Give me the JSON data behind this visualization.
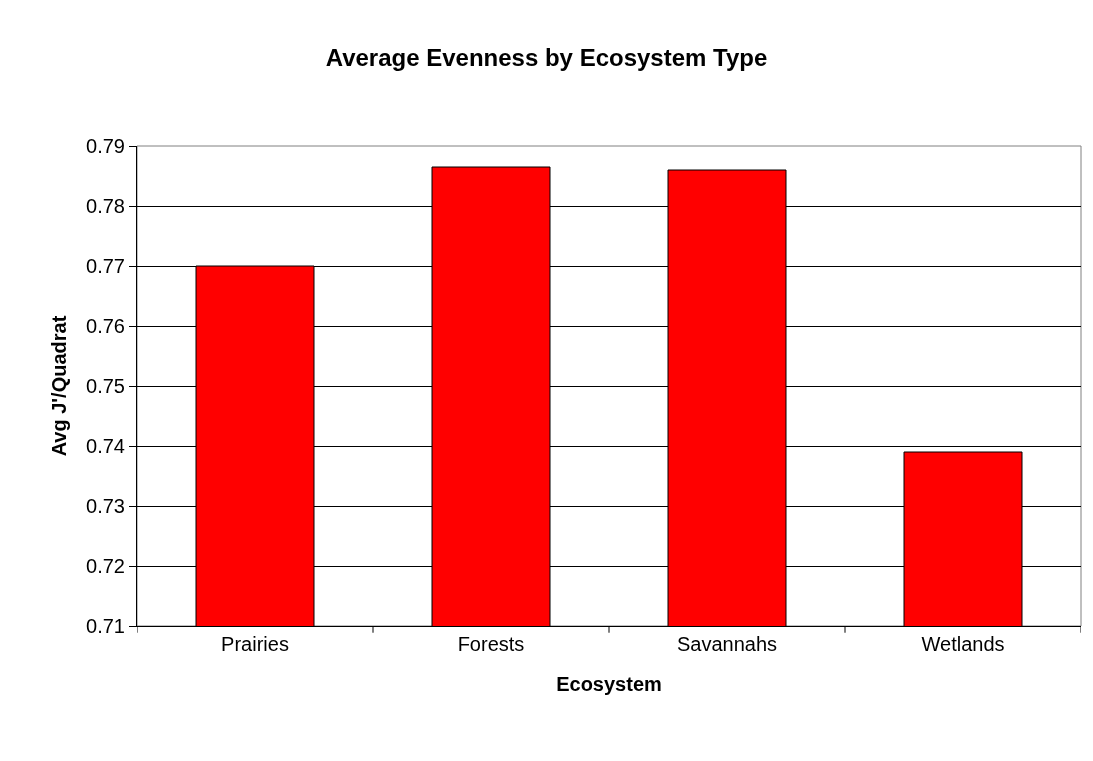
{
  "chart_data": {
    "type": "bar",
    "title": "Average Evenness by Ecosystem Type",
    "xlabel": "Ecosystem",
    "ylabel": "Avg J'/Quadrat",
    "categories": [
      "Prairies",
      "Forests",
      "Savannahs",
      "Wetlands"
    ],
    "values": [
      0.77,
      0.7865,
      0.786,
      0.739
    ],
    "color": "#ff0000",
    "ylim": [
      0.71,
      0.79
    ],
    "yticks": [
      0.71,
      0.72,
      0.73,
      0.74,
      0.75,
      0.76,
      0.77,
      0.78,
      0.79
    ],
    "grid": "y",
    "legend": false
  }
}
